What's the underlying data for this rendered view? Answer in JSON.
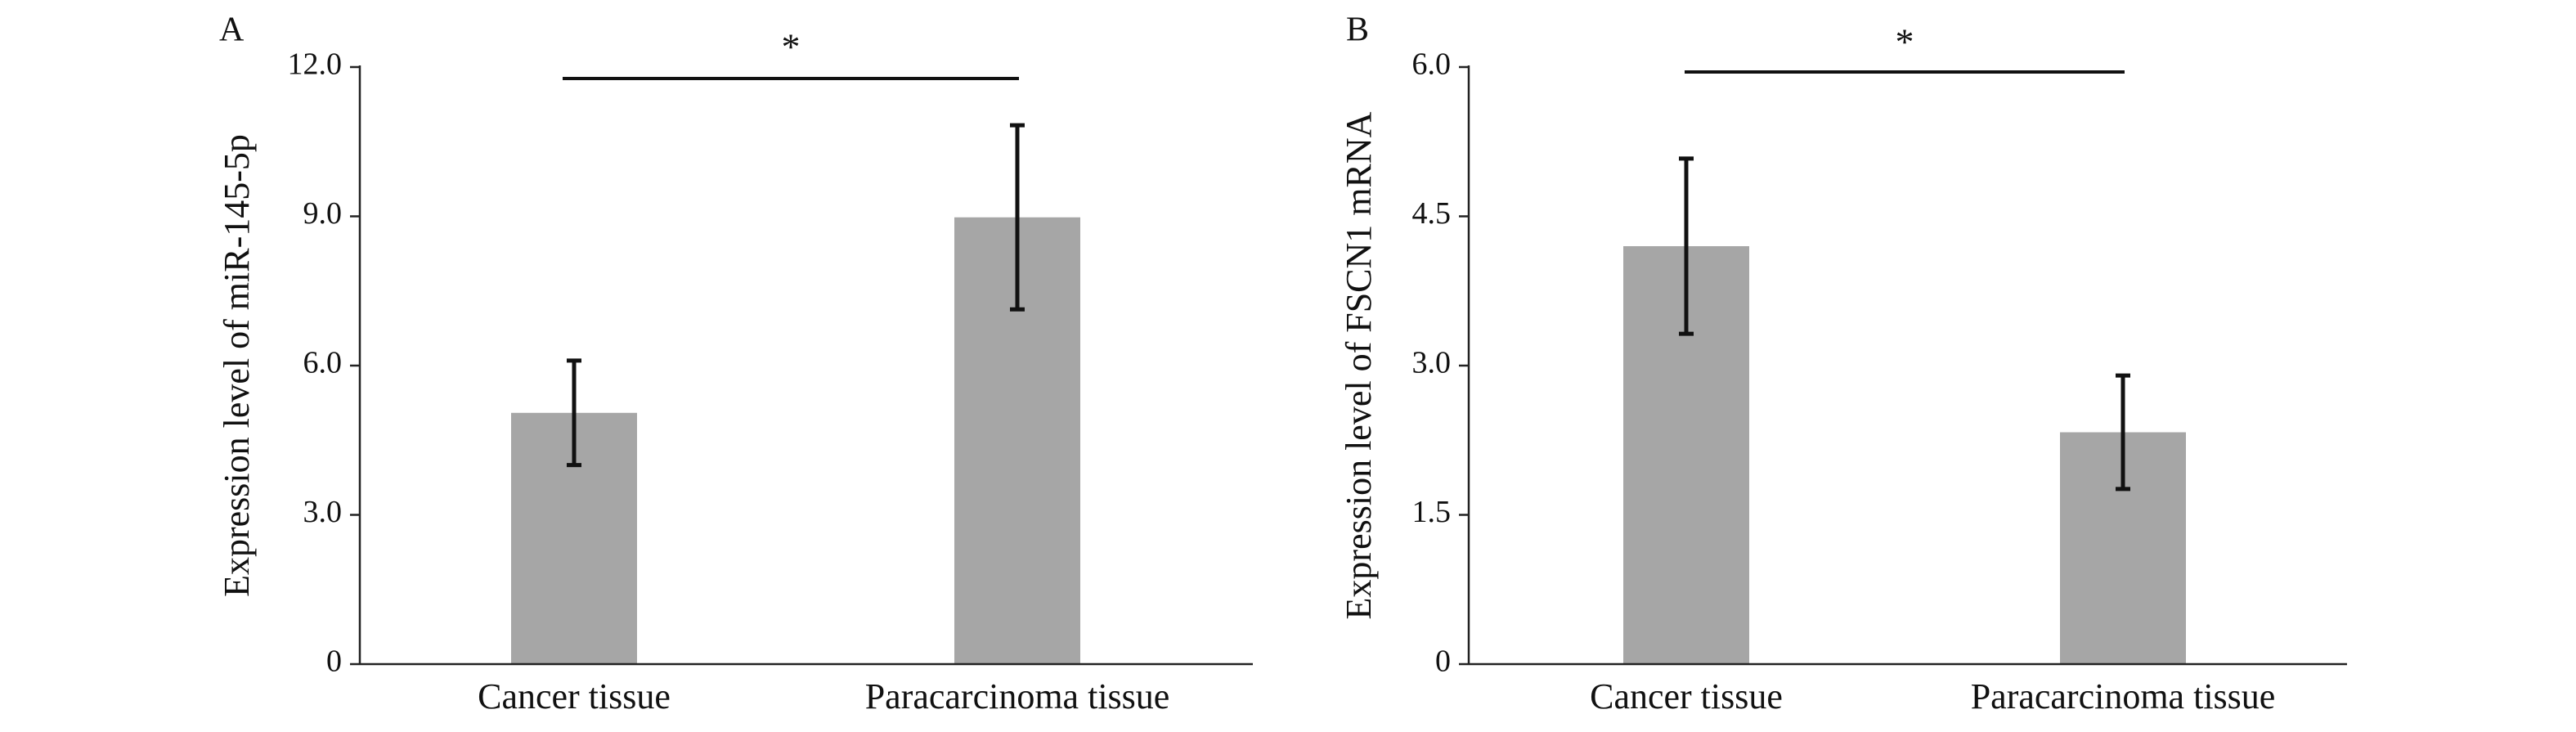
{
  "chart_data": [
    {
      "type": "bar",
      "panel_label": "A",
      "title": "",
      "xlabel": "",
      "ylabel": "Expression level of miR-145-5p",
      "categories": [
        "Cancer tissue",
        "Paracarcinoma tissue"
      ],
      "values": [
        5.05,
        8.98
      ],
      "error": [
        1.05,
        1.85
      ],
      "ylim": [
        0,
        12
      ],
      "yticks": [
        0,
        3,
        6,
        9,
        12
      ],
      "ytick_labels": [
        "0",
        "3.0",
        "6.0",
        "9.0",
        "12.0"
      ],
      "significance": "*",
      "bar_color": "#a6a6a6",
      "error_color": "#111111",
      "grid": false
    },
    {
      "type": "bar",
      "panel_label": "B",
      "title": "",
      "xlabel": "",
      "ylabel": "Expression level of FSCN1 mRNA",
      "categories": [
        "Cancer tissue",
        "Paracarcinoma tissue"
      ],
      "values": [
        4.2,
        2.33
      ],
      "error": [
        0.88,
        0.57
      ],
      "ylim": [
        0,
        6
      ],
      "yticks": [
        0,
        1.5,
        3,
        4.5,
        6
      ],
      "ytick_labels": [
        "0",
        "1.5",
        "3.0",
        "4.5",
        "6.0"
      ],
      "significance": "*",
      "bar_color": "#a6a6a6",
      "error_color": "#111111",
      "grid": false
    }
  ]
}
